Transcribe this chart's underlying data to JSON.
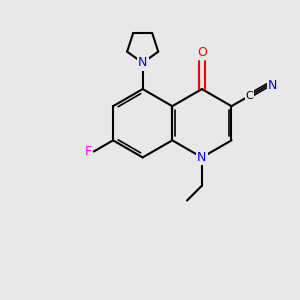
{
  "background_color": "#e8e8e8",
  "bond_color": "#000000",
  "atom_colors": {
    "N": "#0000ff",
    "O": "#ff0000",
    "F": "#ff00ff",
    "C": "#000000",
    "CN_C": "#000000"
  },
  "figsize": [
    3.0,
    3.0
  ],
  "dpi": 100
}
